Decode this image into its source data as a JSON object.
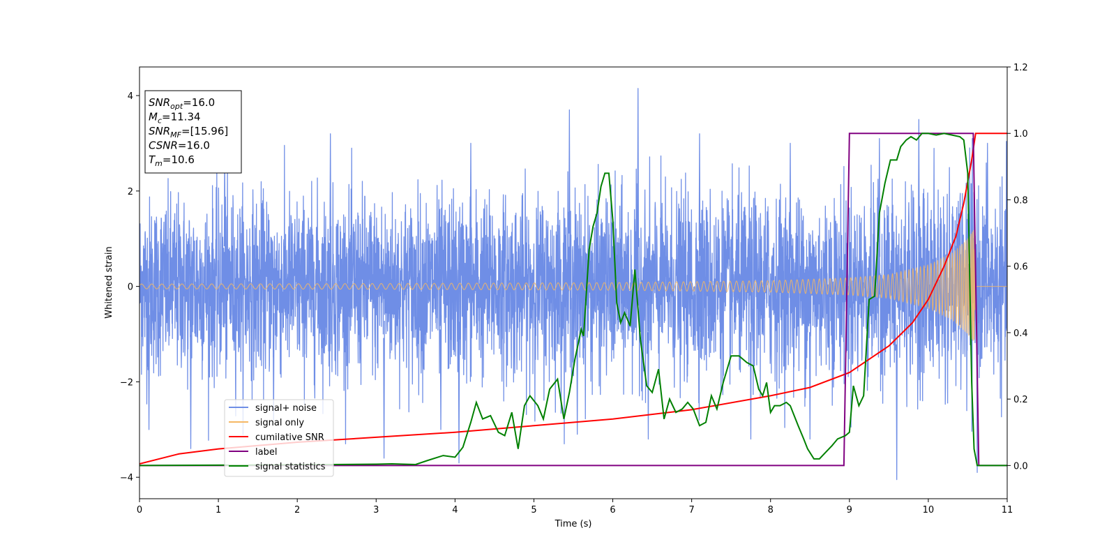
{
  "chart_data": {
    "type": "line",
    "title": "",
    "xlabel": "Time (s)",
    "ylabel": "Whitened strain",
    "xlim": [
      0,
      11
    ],
    "ylim_left": [
      -4.45,
      4.6
    ],
    "ylim_right": [
      -0.1,
      1.2
    ],
    "xticks": [
      0,
      1,
      2,
      3,
      4,
      5,
      6,
      7,
      8,
      9,
      10,
      11
    ],
    "yticks_left": [
      -4,
      -2,
      0,
      2,
      4
    ],
    "yticks_right": [
      0.0,
      0.2,
      0.4,
      0.6,
      0.8,
      1.0,
      1.2
    ],
    "grid": false,
    "legend_position": "lower-left",
    "annotation": {
      "lines": [
        {
          "var": "SNR",
          "sub": "opt",
          "value": "=16.0"
        },
        {
          "var": "M",
          "sub": "c",
          "value": "=11.34"
        },
        {
          "var": "SNR",
          "sub": "MF",
          "value": "=[15.96]"
        },
        {
          "var": "CSNR",
          "sub": "",
          "value": "=16.0"
        },
        {
          "var": "T",
          "sub": "m",
          "value": "=10.6"
        }
      ]
    },
    "series": [
      {
        "name": "signal+ noise",
        "axis": "left",
        "color": "#6f8ee6",
        "description": "noisy whitened strain, approx. unit-variance Gaussian noise plus signal",
        "x_range": [
          0,
          11
        ],
        "std": 1.0,
        "peaks": [
          [
            0.12,
            -3.0
          ],
          [
            0.65,
            -3.4
          ],
          [
            1.08,
            2.8
          ],
          [
            1.7,
            -2.8
          ],
          [
            2.42,
            3.2
          ],
          [
            3.1,
            -3.6
          ],
          [
            3.82,
            -3.0
          ],
          [
            4.05,
            -3.7
          ],
          [
            4.2,
            3.0
          ],
          [
            5.45,
            3.7
          ],
          [
            5.55,
            -3.1
          ],
          [
            6.32,
            4.15
          ],
          [
            6.45,
            -3.2
          ],
          [
            7.1,
            3.2
          ],
          [
            7.75,
            -3.2
          ],
          [
            8.25,
            3.0
          ],
          [
            8.5,
            -3.2
          ],
          [
            9.38,
            3.1
          ],
          [
            9.6,
            -4.05
          ],
          [
            9.88,
            3.5
          ],
          [
            10.62,
            -3.9
          ],
          [
            10.75,
            3.0
          ]
        ]
      },
      {
        "name": "signal only",
        "axis": "left",
        "color": "#f5b764",
        "description": "chirp waveform, amplitude growing to ~1.2 at merger (t~10.6s), zero afterwards",
        "merger_time": 10.6,
        "envelope": [
          [
            0,
            0.05
          ],
          [
            3,
            0.06
          ],
          [
            6,
            0.08
          ],
          [
            8,
            0.12
          ],
          [
            9,
            0.18
          ],
          [
            9.5,
            0.25
          ],
          [
            10,
            0.45
          ],
          [
            10.3,
            0.7
          ],
          [
            10.5,
            1.0
          ],
          [
            10.58,
            1.2
          ],
          [
            10.6,
            0.0
          ],
          [
            11,
            0.0
          ]
        ]
      },
      {
        "name": "cumilative SNR",
        "axis": "right",
        "color": "#ff0000",
        "x": [
          0.0,
          0.5,
          1.0,
          2.0,
          3.0,
          4.0,
          5.0,
          6.0,
          7.0,
          8.0,
          8.5,
          9.0,
          9.5,
          9.8,
          10.0,
          10.2,
          10.35,
          10.45,
          10.55,
          10.6,
          10.65,
          11.0
        ],
        "y": [
          0.005,
          0.035,
          0.05,
          0.07,
          0.085,
          0.1,
          0.12,
          0.14,
          0.168,
          0.21,
          0.235,
          0.28,
          0.36,
          0.43,
          0.5,
          0.6,
          0.69,
          0.79,
          0.92,
          1.0,
          1.0,
          1.0
        ]
      },
      {
        "name": "label",
        "axis": "right",
        "color": "#800080",
        "x": [
          0,
          8.93,
          9.0,
          10.57,
          10.64,
          11.0
        ],
        "y": [
          0.0,
          0.0,
          1.0,
          1.0,
          0.0,
          0.0
        ]
      },
      {
        "name": "signal statistics",
        "axis": "right",
        "color": "#008000",
        "x": [
          0.0,
          1.0,
          2.0,
          3.0,
          3.2,
          3.5,
          3.65,
          3.85,
          4.0,
          4.05,
          4.1,
          4.2,
          4.27,
          4.35,
          4.45,
          4.55,
          4.63,
          4.72,
          4.8,
          4.88,
          4.95,
          5.05,
          5.12,
          5.2,
          5.3,
          5.38,
          5.45,
          5.52,
          5.6,
          5.63,
          5.7,
          5.75,
          5.8,
          5.85,
          5.9,
          5.95,
          6.0,
          6.05,
          6.1,
          6.15,
          6.22,
          6.28,
          6.35,
          6.43,
          6.5,
          6.58,
          6.65,
          6.72,
          6.8,
          6.88,
          6.95,
          7.02,
          7.1,
          7.18,
          7.25,
          7.32,
          7.4,
          7.5,
          7.6,
          7.7,
          7.78,
          7.85,
          7.9,
          7.95,
          8.0,
          8.05,
          8.12,
          8.2,
          8.25,
          8.3,
          8.35,
          8.42,
          8.47,
          8.55,
          8.62,
          8.7,
          8.78,
          8.85,
          8.95,
          9.0,
          9.05,
          9.12,
          9.18,
          9.25,
          9.32,
          9.38,
          9.45,
          9.52,
          9.6,
          9.65,
          9.72,
          9.78,
          9.85,
          9.92,
          10.0,
          10.1,
          10.2,
          10.3,
          10.4,
          10.45,
          10.5,
          10.55,
          10.58,
          10.62,
          10.66,
          10.7,
          10.8,
          11.0
        ],
        "y": [
          0.0,
          0.001,
          0.002,
          0.004,
          0.005,
          0.003,
          0.015,
          0.03,
          0.025,
          0.04,
          0.055,
          0.13,
          0.19,
          0.14,
          0.15,
          0.1,
          0.09,
          0.16,
          0.05,
          0.18,
          0.21,
          0.18,
          0.14,
          0.23,
          0.26,
          0.14,
          0.22,
          0.32,
          0.41,
          0.39,
          0.65,
          0.72,
          0.76,
          0.84,
          0.88,
          0.88,
          0.74,
          0.49,
          0.43,
          0.46,
          0.42,
          0.59,
          0.38,
          0.24,
          0.22,
          0.29,
          0.14,
          0.2,
          0.16,
          0.17,
          0.19,
          0.17,
          0.12,
          0.13,
          0.21,
          0.17,
          0.25,
          0.33,
          0.33,
          0.31,
          0.3,
          0.23,
          0.21,
          0.25,
          0.16,
          0.18,
          0.18,
          0.19,
          0.18,
          0.15,
          0.12,
          0.08,
          0.05,
          0.02,
          0.02,
          0.04,
          0.06,
          0.08,
          0.09,
          0.1,
          0.24,
          0.18,
          0.21,
          0.5,
          0.51,
          0.76,
          0.85,
          0.92,
          0.92,
          0.96,
          0.98,
          0.99,
          0.98,
          1.0,
          1.0,
          0.995,
          1.0,
          0.995,
          0.99,
          0.98,
          0.88,
          0.25,
          0.05,
          0.0,
          0.0,
          0.0,
          0.0,
          0.0
        ]
      }
    ]
  }
}
